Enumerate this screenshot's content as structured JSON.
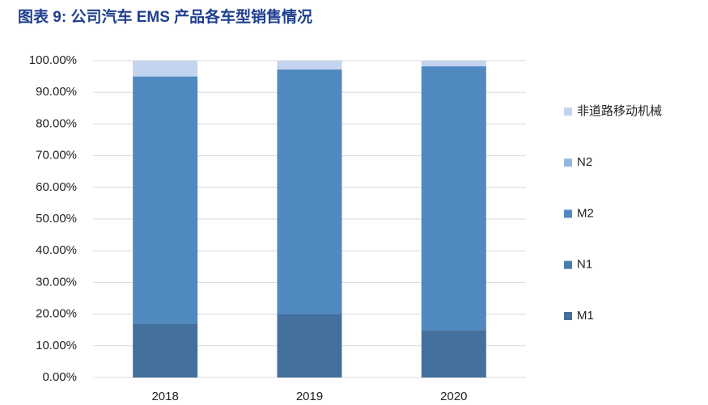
{
  "chart_data": {
    "type": "stacked_bar",
    "title": "图表 9: 公司汽车 EMS 产品各车型销售情况",
    "categories": [
      "2018",
      "2019",
      "2020"
    ],
    "series": [
      {
        "name": "M1",
        "color": "#44709d",
        "values": [
          17,
          20,
          15
        ]
      },
      {
        "name": "N1",
        "color": "#4a7db3",
        "values": [
          0,
          0,
          0
        ]
      },
      {
        "name": "M2",
        "color": "#5089c0",
        "values": [
          78,
          77.2,
          83.2
        ]
      },
      {
        "name": "N2",
        "color": "#93b6e0",
        "values": [
          0,
          0,
          0
        ]
      },
      {
        "name": "非道路移动机械",
        "color": "#c3d4ee",
        "values": [
          5,
          2.8,
          1.8
        ]
      }
    ],
    "ylim": [
      0,
      100
    ],
    "yticks": [
      {
        "value": 0,
        "label": "0.00%"
      },
      {
        "value": 10,
        "label": "10.00%"
      },
      {
        "value": 20,
        "label": "20.00%"
      },
      {
        "value": 30,
        "label": "30.00%"
      },
      {
        "value": 40,
        "label": "40.00%"
      },
      {
        "value": 50,
        "label": "50.00%"
      },
      {
        "value": 60,
        "label": "60.00%"
      },
      {
        "value": 70,
        "label": "70.00%"
      },
      {
        "value": 80,
        "label": "80.00%"
      },
      {
        "value": 90,
        "label": "90.00%"
      },
      {
        "value": 100,
        "label": "100.00%"
      }
    ],
    "grid": true,
    "legend": "right"
  }
}
